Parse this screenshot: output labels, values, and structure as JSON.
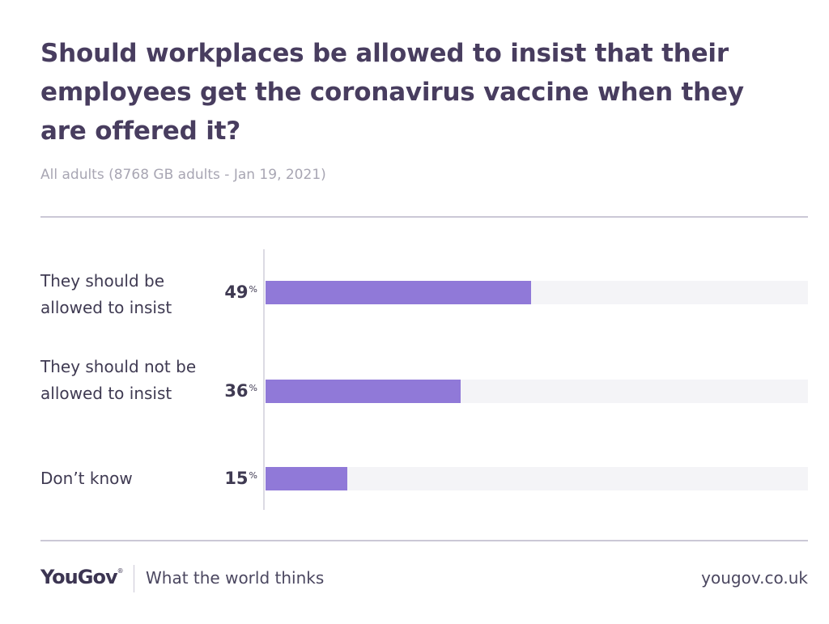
{
  "header": {
    "title": "Should workplaces be allowed to insist that their employees get the coronavirus vaccine when they are offered it?",
    "subtitle": "All adults (8768 GB adults - Jan 19, 2021)"
  },
  "chart_data": {
    "type": "bar",
    "orientation": "horizontal",
    "title": "Should workplaces be allowed to insist that their employees get the coronavirus vaccine when they are offered it?",
    "categories": [
      "They should be allowed to insist",
      "They should not be allowed to insist",
      "Don’t know"
    ],
    "values": [
      49,
      36,
      15
    ],
    "value_labels": [
      "49",
      "36",
      "15"
    ],
    "unit": "%",
    "xlim": [
      0,
      100
    ],
    "xlabel": "",
    "ylabel": "",
    "grid": false,
    "bar_color": "#9079d8",
    "track_color": "#f4f4f7"
  },
  "footer": {
    "logo": "YouGov",
    "logo_mark": "®",
    "tagline": "What the world thinks",
    "url": "yougov.co.uk"
  },
  "colors": {
    "title": "#483d5f",
    "subtitle": "#a8a6b3",
    "text": "#3f3a52",
    "rule": "#cbc8d6"
  }
}
